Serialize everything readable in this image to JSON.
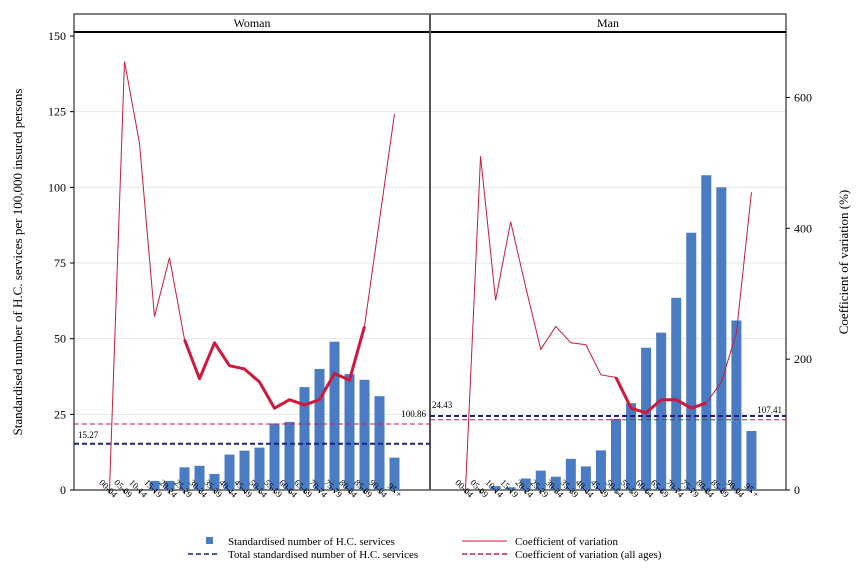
{
  "chart_data": {
    "type": "bar",
    "ylabel_left": "Standardised number of H.C. services per 100,000 insured persons",
    "ylabel_right": "Coefficient of variation (%)",
    "ylim_left": [
      0,
      150
    ],
    "ylim_right": [
      0,
      700
    ],
    "yticks_left": [
      "0",
      "25",
      "50",
      "75",
      "100",
      "125",
      "150"
    ],
    "yticks_right": [
      "0",
      "200",
      "400",
      "600"
    ],
    "categories": [
      "00-04",
      "05-09",
      "10-14",
      "15-19",
      "20-24",
      "25-29",
      "30-34",
      "35-39",
      "40-44",
      "45-49",
      "50-54",
      "55-59",
      "60-64",
      "65-69",
      "70-74",
      "75-79",
      "80-84",
      "85-89",
      "90-94",
      "95 +"
    ],
    "panels": [
      {
        "title": "Woman",
        "bars": [
          0,
          0,
          0,
          3,
          3,
          7.5,
          8,
          5.3,
          11.7,
          13,
          14,
          22,
          22.5,
          34,
          40,
          49,
          38.3,
          36.4,
          31,
          10.7
        ],
        "cv": [
          null,
          655,
          530,
          265,
          355,
          230,
          170,
          225,
          190,
          185,
          165,
          125,
          138,
          130,
          138,
          178,
          168,
          250,
          null,
          575
        ],
        "cv_thick_range": [
          5,
          17
        ],
        "total": 15.27,
        "total_label": "15.27",
        "cv_all_ages": 100.86,
        "cv_all_ages_label": "100.86"
      },
      {
        "title": "Man",
        "bars": [
          0,
          0,
          1.3,
          0.9,
          3.8,
          6.4,
          4.4,
          10.3,
          7.8,
          13.1,
          23.5,
          28.7,
          47,
          52,
          63.5,
          85,
          104,
          100,
          56,
          19.5
        ],
        "cv": [
          null,
          510,
          290,
          410,
          310,
          215,
          250,
          225,
          222,
          176,
          172,
          125,
          118,
          138,
          138,
          125,
          133,
          165,
          240,
          455
        ],
        "cv_thick_range": [
          10,
          16
        ],
        "total": 24.43,
        "total_label": "24.43",
        "cv_all_ages": 107.41,
        "cv_all_ages_label": "107.41"
      }
    ],
    "legend": [
      {
        "label": "Standardised number of H.C. services",
        "marker": "square",
        "color": "#4a7cc4"
      },
      {
        "label": "Coefficient of variation",
        "marker": "line",
        "color": "#d0173c"
      },
      {
        "label": "Total standardised number of H.C. services",
        "marker": "dash",
        "color": "#1a237e"
      },
      {
        "label": "Coefficient of variation (all ages)",
        "marker": "dash",
        "color": "#c2185b"
      }
    ],
    "legend_position": "bottom",
    "colors": {
      "bar": "#4a7cc4",
      "cv": "#d0173c",
      "total": "#1a237e",
      "cv_all": "#c2185b",
      "grid": "#e6e6e6"
    }
  }
}
